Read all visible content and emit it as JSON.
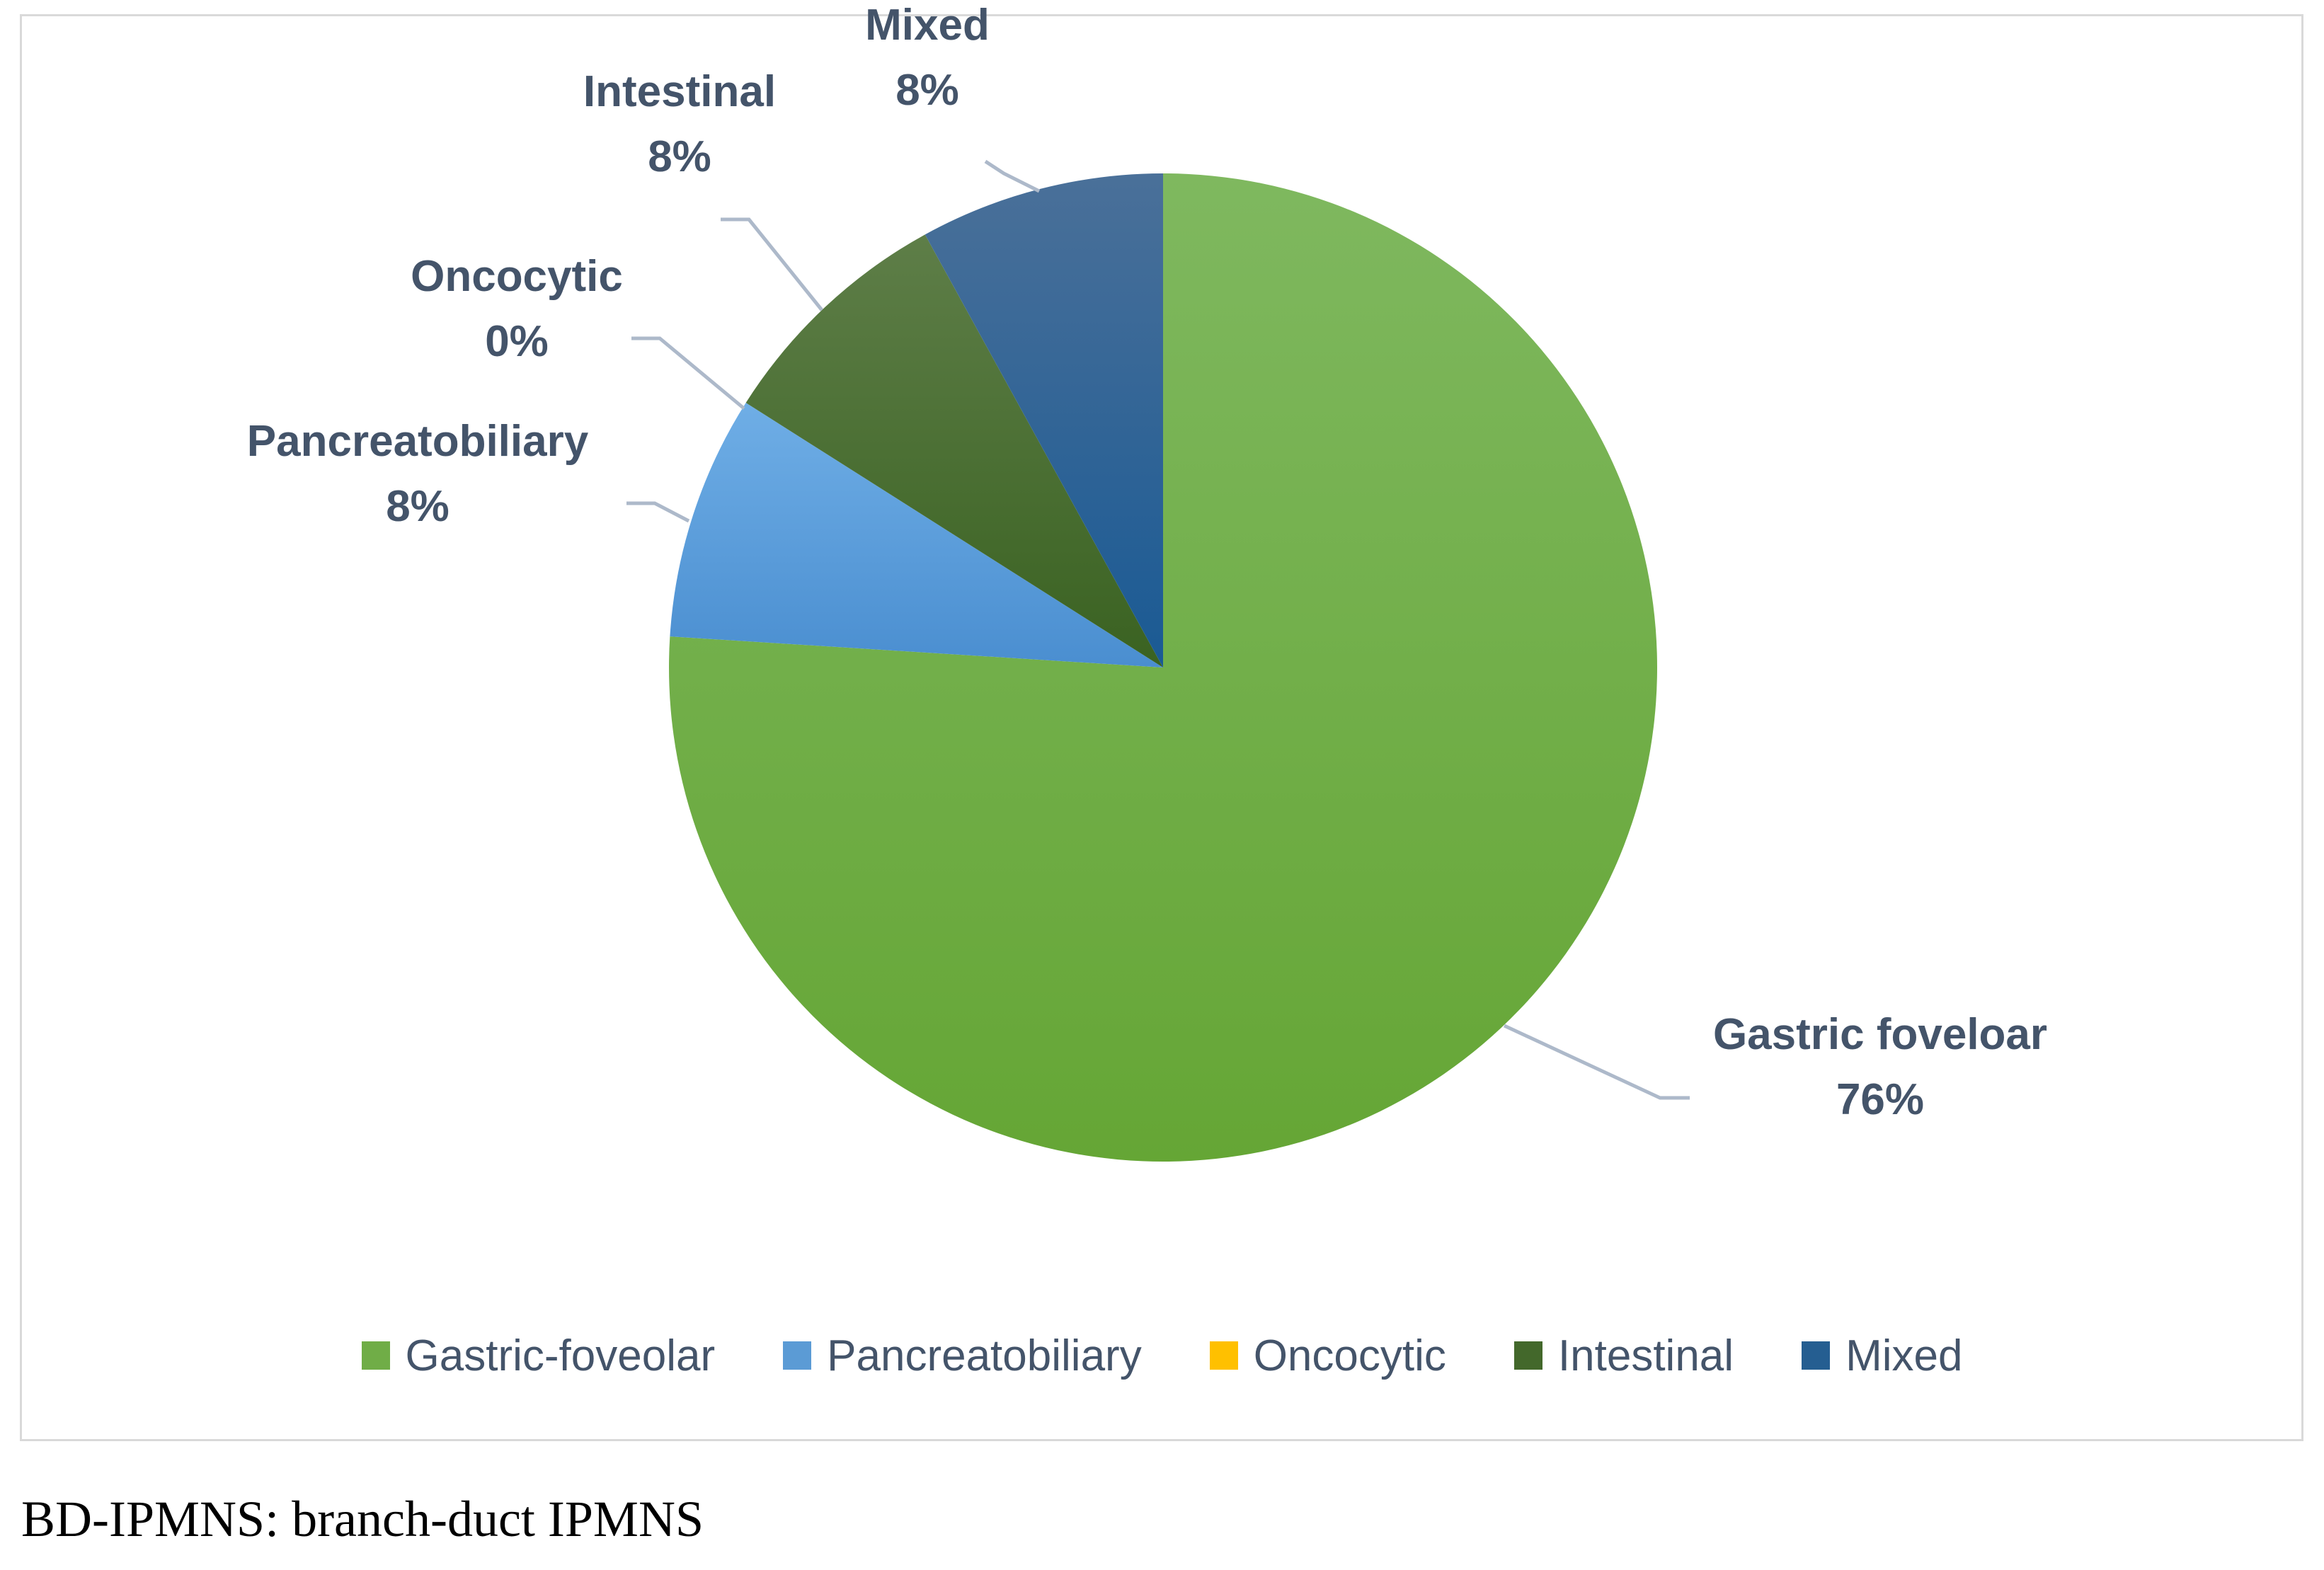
{
  "chart_data": {
    "type": "pie",
    "categories": [
      "Gastric-foveolar",
      "Pancreatobiliary",
      "Oncocytic",
      "Intestinal",
      "Mixed"
    ],
    "values": [
      76,
      8,
      0,
      8,
      8
    ],
    "colors": [
      "#70ad47",
      "#5b9bd5",
      "#ffc000",
      "#43682b",
      "#255e91"
    ],
    "slice_labels": [
      {
        "name": "Gastric foveloar",
        "value": "76%"
      },
      {
        "name": "Pancreatobiliary",
        "value": "8%"
      },
      {
        "name": "Oncocytic",
        "value": "0%"
      },
      {
        "name": "Intestinal",
        "value": "8%"
      },
      {
        "name": "Mixed",
        "value": "8%"
      }
    ],
    "start_angle": "12 o'clock",
    "direction": "clockwise",
    "legend_position": "bottom"
  },
  "caption": "BD-IPMNS: branch-duct IPMNS"
}
